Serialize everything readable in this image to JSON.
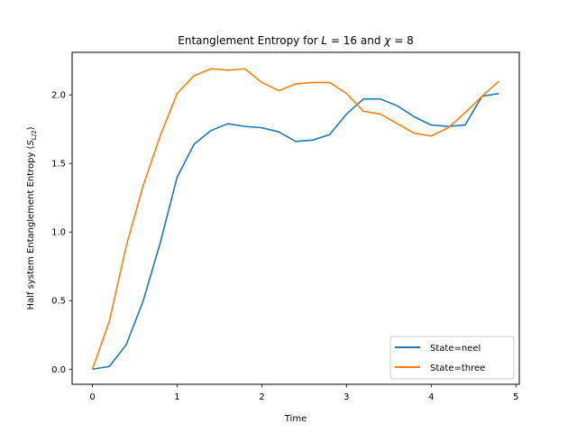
{
  "chart_data": {
    "type": "line",
    "title_parts": [
      "Entanglement Entropy for ",
      "L",
      " = 16 and ",
      "χ",
      " = 8"
    ],
    "xlabel": "Time",
    "ylabel_parts": [
      "Half system Entanglement Entropy (",
      "S",
      "L/2",
      ")"
    ],
    "xlim": [
      -0.24,
      5.04
    ],
    "ylim": [
      -0.11,
      2.31
    ],
    "xticks": [
      0,
      1,
      2,
      3,
      4,
      5
    ],
    "xtick_labels": [
      "0",
      "1",
      "2",
      "3",
      "4",
      "5"
    ],
    "yticks": [
      0.0,
      0.5,
      1.0,
      1.5,
      2.0
    ],
    "ytick_labels": [
      "0.0",
      "0.5",
      "1.0",
      "1.5",
      "2.0"
    ],
    "grid": false,
    "legend_position": "lower-right",
    "series": [
      {
        "name": "State=neel",
        "color": "#1f77b4",
        "x": [
          0,
          0.2,
          0.4,
          0.6,
          0.8,
          1.0,
          1.2,
          1.4,
          1.6,
          1.8,
          2.0,
          2.2,
          2.4,
          2.6,
          2.8,
          3.0,
          3.2,
          3.4,
          3.6,
          3.8,
          4.0,
          4.2,
          4.4,
          4.6,
          4.8
        ],
        "values": [
          0.0,
          0.02,
          0.18,
          0.5,
          0.92,
          1.4,
          1.64,
          1.74,
          1.79,
          1.77,
          1.76,
          1.73,
          1.66,
          1.67,
          1.71,
          1.86,
          1.97,
          1.97,
          1.92,
          1.84,
          1.78,
          1.77,
          1.78,
          1.99,
          2.01
        ]
      },
      {
        "name": "State=three",
        "color": "#ff7f0e",
        "x": [
          0,
          0.2,
          0.4,
          0.6,
          0.8,
          1.0,
          1.2,
          1.4,
          1.6,
          1.8,
          2.0,
          2.2,
          2.4,
          2.6,
          2.8,
          3.0,
          3.2,
          3.4,
          3.6,
          3.8,
          4.0,
          4.2,
          4.4,
          4.6,
          4.8
        ],
        "values": [
          0.0,
          0.35,
          0.9,
          1.34,
          1.7,
          2.01,
          2.14,
          2.19,
          2.18,
          2.19,
          2.09,
          2.03,
          2.08,
          2.09,
          2.09,
          2.01,
          1.88,
          1.86,
          1.79,
          1.72,
          1.7,
          1.76,
          1.87,
          1.99,
          2.1
        ]
      }
    ]
  }
}
